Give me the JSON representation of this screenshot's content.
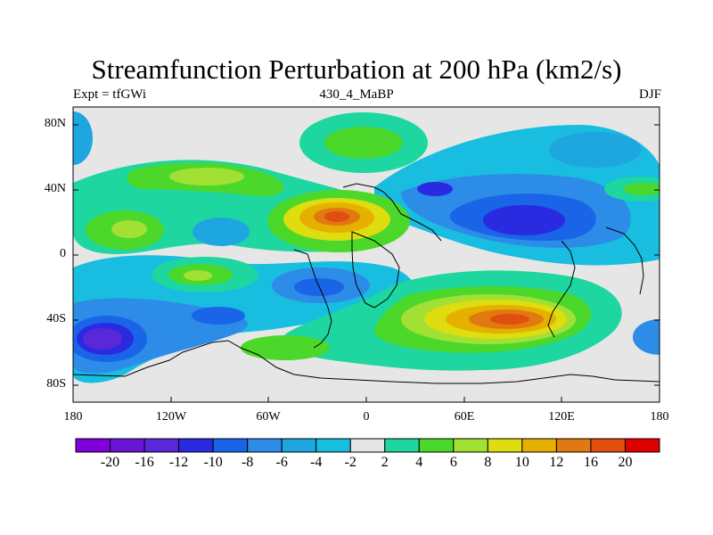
{
  "title": "Streamfunction Perturbation at 200 hPa (km2/s)",
  "subtitle": {
    "left": "Expt = tfGWi",
    "center": "430_4_MaBP",
    "right": "DJF"
  },
  "axes": {
    "lat_labels": [
      "80N",
      "40N",
      "0",
      "40S",
      "80S"
    ],
    "lon_labels": [
      "180",
      "120W",
      "60W",
      "0",
      "60E",
      "120E",
      "180"
    ]
  },
  "colorbar": {
    "labels": [
      "-20",
      "-16",
      "-12",
      "-10",
      "-8",
      "-6",
      "-4",
      "-2",
      "2",
      "4",
      "6",
      "8",
      "10",
      "12",
      "16",
      "20"
    ],
    "colors": [
      "#7f00d9",
      "#6a14d6",
      "#5a28d8",
      "#2a2ae0",
      "#1a64e8",
      "#2c8ce8",
      "#1ea6e0",
      "#18bde0",
      "#e6e6e6",
      "#1ed6a0",
      "#4cd82a",
      "#a2e034",
      "#dddd10",
      "#e6b000",
      "#e07a10",
      "#e04e10",
      "#e00000"
    ]
  },
  "colors": {
    "background": "#ffffff",
    "neutral": "#e6e6e6",
    "coast": "#000000"
  }
}
